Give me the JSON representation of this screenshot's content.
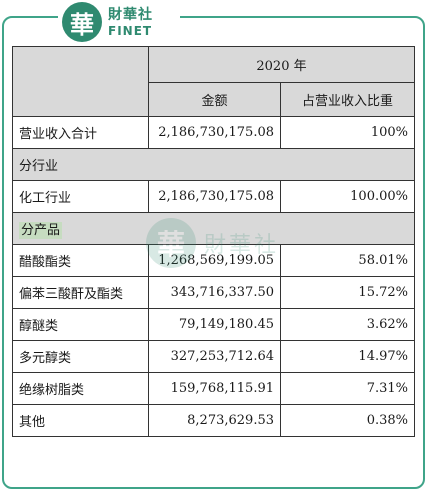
{
  "logo": {
    "mark": "華",
    "cn": "財華社",
    "en": "FINET"
  },
  "watermark": {
    "mark": "華",
    "cn": "財華社"
  },
  "table": {
    "year_header": "2020 年",
    "col_amount": "金额",
    "col_ratio": "占营业收入比重",
    "total": {
      "label": "营业收入合计",
      "amount": "2,186,730,175.08",
      "ratio": "100%"
    },
    "by_industry_label": "分行业",
    "industry_rows": [
      {
        "label": "化工行业",
        "amount": "2,186,730,175.08",
        "ratio": "100.00%"
      }
    ],
    "by_product_label": "分产品",
    "product_rows": [
      {
        "label": "醋酸酯类",
        "amount": "1,268,569,199.05",
        "ratio": "58.01%"
      },
      {
        "label": "偏苯三酸酐及酯类",
        "amount": "343,716,337.50",
        "ratio": "15.72%"
      },
      {
        "label": "醇醚类",
        "amount": "79,149,180.45",
        "ratio": "3.62%"
      },
      {
        "label": "多元醇类",
        "amount": "327,253,712.64",
        "ratio": "14.97%"
      },
      {
        "label": "绝缘树脂类",
        "amount": "159,768,115.91",
        "ratio": "7.31%"
      },
      {
        "label": "其他",
        "amount": "8,273,629.53",
        "ratio": "0.38%"
      }
    ]
  }
}
